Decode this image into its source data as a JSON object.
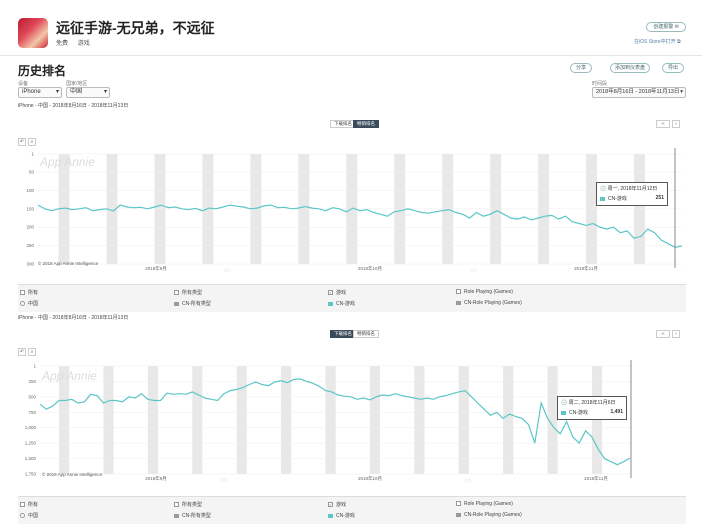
{
  "app": {
    "title": "远征手游-无兄弟，不远征",
    "price": "免费",
    "category": "游戏",
    "btn_track": "创建报警 ✉",
    "link_itunes": "在iOS Store中打开 ⧉"
  },
  "section": {
    "title": "历史排名",
    "btn_share": "分享",
    "btn_add_dashboard": "添加到仪表盘",
    "btn_export": "导出",
    "device_label": "设备",
    "device_value": "iPhone",
    "country_label": "国家/地区",
    "country_value": "中国",
    "date_label": "时间段",
    "date_value": "2018年8月16日 - 2018年11月13日"
  },
  "chart1": {
    "subtitle": "iPhone - 中国 - 2018年8月16日 - 2018年11月13日",
    "toggle_downloads": "下载排名",
    "toggle_grossing": "畅销排名",
    "tooltip_date": "周一, 2018年11月12日",
    "tooltip_series": "CN-游戏",
    "tooltip_value": "251",
    "yticks": [
      "1",
      "50",
      "100",
      "150",
      "200",
      "250",
      "300"
    ],
    "xticks": [
      "2018年9月",
      "2018年10月",
      "2018年11月"
    ],
    "watermark": "App Annie",
    "copyright": "© 2018 App Annie Intelligence"
  },
  "legend1": {
    "all": "所有",
    "all_types": "所有类型",
    "games": "游戏",
    "rpg": "Role Playing (Games)",
    "china": "中国",
    "cn_all": "CN-所有类型",
    "cn_games": "CN-游戏",
    "cn_rpg": "CN-Role Playing (Games)"
  },
  "chart2": {
    "subtitle": "iPhone - 中国 - 2018年8月16日 - 2018年11月13日",
    "toggle_downloads": "下载排名",
    "toggle_grossing": "畅销排名",
    "tooltip_date": "周二, 2018年11月6日",
    "tooltip_series": "CN-游戏",
    "tooltip_value": "1,491",
    "yticks": [
      "1",
      "250",
      "500",
      "750",
      "1,000",
      "1,250",
      "1,500",
      "1,750"
    ],
    "xticks": [
      "2018年9月",
      "2018年10月",
      "2018年11月"
    ],
    "watermark": "App Annie",
    "copyright": "© 2018 App Annie Intelligence"
  },
  "legend2": {
    "all": "所有",
    "all_types": "所有类型",
    "games": "游戏",
    "rpg": "Role Playing (Games)",
    "china": "中国",
    "cn_all": "CN-所有类型",
    "cn_games": "CN-游戏",
    "cn_rpg": "CN-Role Playing (Games)"
  },
  "colors": {
    "series": "#5cc6c6",
    "weekend": "#e8e8e8",
    "grid": "#eeeeee"
  },
  "chart_data": [
    {
      "type": "line",
      "series": [
        {
          "name": "CN-游戏",
          "values": [
            140,
            150,
            155,
            150,
            148,
            152,
            150,
            147,
            155,
            152,
            150,
            156,
            140,
            145,
            147,
            146,
            150,
            145,
            140,
            147,
            145,
            150,
            152,
            149,
            155,
            148,
            150,
            145,
            140,
            143,
            145,
            150,
            148,
            142,
            140,
            147,
            146,
            150,
            148,
            144,
            148,
            150,
            155,
            147,
            150,
            158,
            148,
            155,
            152,
            160,
            165,
            170,
            158,
            155,
            150,
            155,
            160,
            162,
            158,
            155,
            152,
            160,
            165,
            175,
            160,
            170,
            165,
            155,
            165,
            175,
            178,
            172,
            180,
            175,
            170,
            168,
            178,
            170,
            185,
            190,
            195,
            190,
            200,
            205,
            200,
            215,
            210,
            230,
            225,
            205,
            215,
            235,
            245,
            255,
            251
          ]
        }
      ],
      "ylim": [
        1,
        300
      ],
      "yticks": [
        1,
        50,
        100,
        150,
        200,
        250,
        300
      ],
      "xticks": [
        "2018年9月",
        "2018年10月",
        "2018年11月"
      ],
      "annotation": {
        "date": "周一, 2018年11月12日",
        "series": "CN-游戏",
        "value": 251
      }
    },
    {
      "type": "line",
      "series": [
        {
          "name": "CN-游戏",
          "values": [
            620,
            700,
            650,
            560,
            560,
            540,
            600,
            580,
            460,
            480,
            600,
            560,
            560,
            580,
            500,
            520,
            450,
            540,
            560,
            560,
            440,
            460,
            450,
            460,
            420,
            470,
            520,
            540,
            560,
            450,
            400,
            380,
            350,
            300,
            260,
            300,
            320,
            260,
            240,
            270,
            220,
            210,
            250,
            280,
            330,
            400,
            420,
            470,
            490,
            500,
            540,
            520,
            550,
            500,
            470,
            480,
            450,
            480,
            500,
            520,
            540,
            520,
            540,
            500,
            480,
            450,
            420,
            400,
            500,
            600,
            700,
            800,
            750,
            850,
            780,
            820,
            850,
            950,
            1250,
            600,
            850,
            1000,
            1100,
            900,
            1150,
            1250,
            1050,
            1150,
            1350,
            1500,
            1550,
            1600,
            1550,
            1491
          ]
        }
      ],
      "ylim": [
        1,
        1750
      ],
      "yticks": [
        1,
        250,
        500,
        750,
        1000,
        1250,
        1500,
        1750
      ],
      "xticks": [
        "2018年9月",
        "2018年10月",
        "2018年11月"
      ],
      "annotation": {
        "date": "周二, 2018年11月6日",
        "series": "CN-游戏",
        "value": 1491
      }
    }
  ]
}
